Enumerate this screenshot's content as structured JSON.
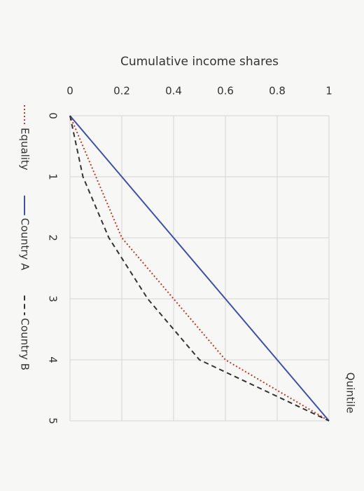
{
  "chart_data": {
    "type": "line",
    "y_label": "Cumulative income shares",
    "x_label": "Quintile",
    "x": [
      0,
      1,
      2,
      3,
      4,
      5
    ],
    "xlim": [
      0,
      5
    ],
    "xticks": [
      0,
      1,
      2,
      3,
      4,
      5
    ],
    "ylim": [
      0,
      1
    ],
    "yticks": [
      0,
      0.2,
      0.4,
      0.6,
      0.8,
      1
    ],
    "grid": true,
    "legend": "bottom",
    "series": [
      {
        "name": "Equality",
        "color": "#c0392b",
        "dash": "dotted",
        "values": [
          0,
          0.1,
          0.2,
          0.4,
          0.6,
          1
        ]
      },
      {
        "name": "Country A",
        "color": "#3f51a5",
        "dash": "solid",
        "values": [
          0,
          0.2,
          0.4,
          0.6,
          0.8,
          1
        ]
      },
      {
        "name": "Country B",
        "color": "#333333",
        "dash": "dashed",
        "values": [
          0,
          0.05,
          0.15,
          0.3,
          0.5,
          1
        ]
      }
    ]
  }
}
